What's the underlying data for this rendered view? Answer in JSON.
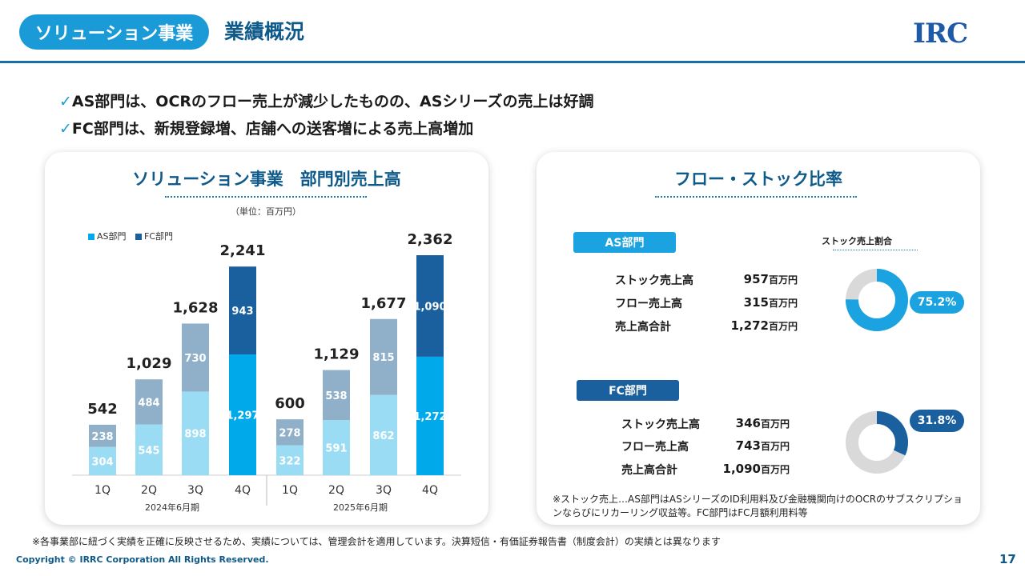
{
  "header": {
    "segment": "ソリューション事業",
    "title": "業績概況",
    "logo": "IRC"
  },
  "bullets": [
    {
      "check": "✓",
      "text": "AS部門は、OCRのフロー売上が減少したものの、ASシリーズの売上は好調"
    },
    {
      "check": "✓",
      "text": "FC部門は、新規登録増、店舗への送客増による売上高増加"
    }
  ],
  "left_card": {
    "title": "ソリューション事業　部門別売上高",
    "unit": "（単位：百万円）",
    "legend": {
      "as": "AS部門",
      "fc": "FC部門"
    }
  },
  "chart_data": {
    "type": "bar",
    "stacked": true,
    "categories": [
      "1Q",
      "2Q",
      "3Q",
      "4Q",
      "1Q",
      "2Q",
      "3Q",
      "4Q"
    ],
    "groups": [
      "2024年6月期",
      "2025年6月期"
    ],
    "series": [
      {
        "name": "AS部門",
        "values": [
          304,
          545,
          898,
          1297,
          322,
          591,
          862,
          1272
        ]
      },
      {
        "name": "FC部門",
        "values": [
          238,
          484,
          730,
          943,
          278,
          538,
          815,
          1090
        ]
      }
    ],
    "value_labels_as": [
      "304",
      "545",
      "898",
      "1,297",
      "322",
      "591",
      "862",
      "1,272"
    ],
    "value_labels_fc": [
      "238",
      "484",
      "730",
      "943",
      "278",
      "538",
      "815",
      "1,090"
    ],
    "totals": [
      "542",
      "1,029",
      "1,628",
      "2,241",
      "600",
      "1,129",
      "1,677",
      "2,362"
    ],
    "colors": {
      "as_nonq4": "#9bdcf5",
      "fc_nonq4": "#8fb0c8",
      "as_q4": "#00aaea",
      "fc_q4": "#1a5f9e"
    }
  },
  "right_card": {
    "title": "フロー・ストック比率",
    "donut_title": "ストック売上割合",
    "as": {
      "label": "AS部門",
      "rows": [
        {
          "label": "ストック売上高",
          "value": "957",
          "unit": "百万円"
        },
        {
          "label": "フロー売上高",
          "value": "315",
          "unit": "百万円"
        },
        {
          "label": "売上高合計",
          "value": "1,272",
          "unit": "百万円"
        }
      ],
      "pct_label": "75.2%",
      "ratio": 0.752,
      "color": "#1aa3e0"
    },
    "fc": {
      "label": "FC部門",
      "rows": [
        {
          "label": "ストック売上高",
          "value": "346",
          "unit": "百万円"
        },
        {
          "label": "フロー売上高",
          "value": "743",
          "unit": "百万円"
        },
        {
          "label": "売上高合計",
          "value": "1,090",
          "unit": "百万円"
        }
      ],
      "pct_label": "31.8%",
      "ratio": 0.318,
      "color": "#1a5f9e"
    },
    "note": "※ストック売上…AS部門はASシリーズのID利用料及び金融機関向けのOCRのサブスクリプションならびにリカーリング収益等。FC部門はFC月額利用料等"
  },
  "footer": {
    "note": "※各事業部に紐づく実績を正確に反映させるため、実績については、管理会計を適用しています。決算短信・有価証券報告書（制度会計）の実績とは異なります",
    "copyright": "Copyright © IRRC Corporation All Rights Reserved.",
    "page": "17"
  }
}
